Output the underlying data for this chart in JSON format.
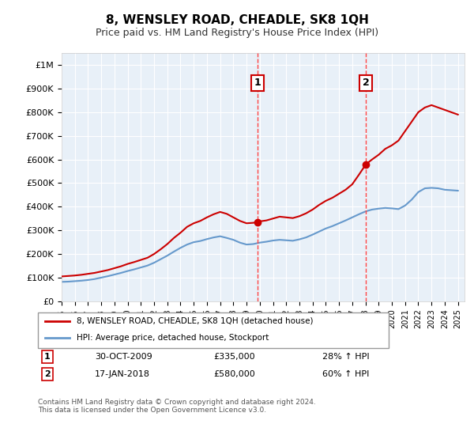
{
  "title": "8, WENSLEY ROAD, CHEADLE, SK8 1QH",
  "subtitle": "Price paid vs. HM Land Registry's House Price Index (HPI)",
  "legend_line1": "8, WENSLEY ROAD, CHEADLE, SK8 1QH (detached house)",
  "legend_line2": "HPI: Average price, detached house, Stockport",
  "footer": "Contains HM Land Registry data © Crown copyright and database right 2024.\nThis data is licensed under the Open Government Licence v3.0.",
  "annotation1_label": "1",
  "annotation1_date": "30-OCT-2009",
  "annotation1_price": "£335,000",
  "annotation1_hpi": "28% ↑ HPI",
  "annotation2_label": "2",
  "annotation2_date": "17-JAN-2018",
  "annotation2_price": "£580,000",
  "annotation2_hpi": "60% ↑ HPI",
  "sale1_x": 2009.83,
  "sale1_y": 335000,
  "sale2_x": 2018.04,
  "sale2_y": 580000,
  "vline1_x": 2009.83,
  "vline2_x": 2018.04,
  "property_color": "#cc0000",
  "hpi_color": "#6699cc",
  "vline_color": "#ff4444",
  "background_color": "#ffffff",
  "plot_bg_color": "#e8f0f8",
  "ylim": [
    0,
    1050000
  ],
  "xlim_start": 1995.0,
  "xlim_end": 2025.5,
  "yticks": [
    0,
    100000,
    200000,
    300000,
    400000,
    500000,
    600000,
    700000,
    800000,
    900000,
    1000000
  ],
  "ytick_labels": [
    "£0",
    "£100K",
    "£200K",
    "£300K",
    "£400K",
    "£500K",
    "£600K",
    "£700K",
    "£800K",
    "£900K",
    "£1M"
  ],
  "xticks": [
    1995,
    1996,
    1997,
    1998,
    1999,
    2000,
    2001,
    2002,
    2003,
    2004,
    2005,
    2006,
    2007,
    2008,
    2009,
    2010,
    2011,
    2012,
    2013,
    2014,
    2015,
    2016,
    2017,
    2018,
    2019,
    2020,
    2021,
    2022,
    2023,
    2024,
    2025
  ],
  "property_x": [
    1995.0,
    1995.5,
    1996.0,
    1996.5,
    1997.0,
    1997.5,
    1998.0,
    1998.5,
    1999.0,
    1999.5,
    2000.0,
    2000.5,
    2001.0,
    2001.5,
    2002.0,
    2002.5,
    2003.0,
    2003.5,
    2004.0,
    2004.5,
    2005.0,
    2005.5,
    2006.0,
    2006.5,
    2007.0,
    2007.5,
    2008.0,
    2008.5,
    2009.0,
    2009.5,
    2009.83,
    2010.0,
    2010.5,
    2011.0,
    2011.5,
    2012.0,
    2012.5,
    2013.0,
    2013.5,
    2014.0,
    2014.5,
    2015.0,
    2015.5,
    2016.0,
    2016.5,
    2017.0,
    2017.5,
    2018.04,
    2018.5,
    2019.0,
    2019.5,
    2020.0,
    2020.5,
    2021.0,
    2021.5,
    2022.0,
    2022.5,
    2023.0,
    2023.5,
    2024.0,
    2024.5,
    2025.0
  ],
  "property_y": [
    105000,
    107000,
    109000,
    112000,
    116000,
    120000,
    126000,
    132000,
    140000,
    148000,
    158000,
    166000,
    175000,
    184000,
    200000,
    220000,
    242000,
    268000,
    290000,
    315000,
    330000,
    340000,
    355000,
    368000,
    378000,
    370000,
    355000,
    340000,
    330000,
    332000,
    335000,
    338000,
    342000,
    350000,
    358000,
    355000,
    352000,
    360000,
    372000,
    388000,
    408000,
    425000,
    438000,
    455000,
    472000,
    495000,
    535000,
    580000,
    600000,
    620000,
    645000,
    660000,
    680000,
    720000,
    760000,
    800000,
    820000,
    830000,
    820000,
    810000,
    800000,
    790000
  ],
  "hpi_x": [
    1995.0,
    1995.5,
    1996.0,
    1996.5,
    1997.0,
    1997.5,
    1998.0,
    1998.5,
    1999.0,
    1999.5,
    2000.0,
    2000.5,
    2001.0,
    2001.5,
    2002.0,
    2002.5,
    2003.0,
    2003.5,
    2004.0,
    2004.5,
    2005.0,
    2005.5,
    2006.0,
    2006.5,
    2007.0,
    2007.5,
    2008.0,
    2008.5,
    2009.0,
    2009.5,
    2010.0,
    2010.5,
    2011.0,
    2011.5,
    2012.0,
    2012.5,
    2013.0,
    2013.5,
    2014.0,
    2014.5,
    2015.0,
    2015.5,
    2016.0,
    2016.5,
    2017.0,
    2017.5,
    2018.0,
    2018.5,
    2019.0,
    2019.5,
    2020.0,
    2020.5,
    2021.0,
    2021.5,
    2022.0,
    2022.5,
    2023.0,
    2023.5,
    2024.0,
    2024.5,
    2025.0
  ],
  "hpi_y": [
    82000,
    83000,
    85000,
    87000,
    90000,
    94000,
    100000,
    106000,
    113000,
    120000,
    128000,
    135000,
    143000,
    151000,
    163000,
    178000,
    193000,
    210000,
    226000,
    240000,
    250000,
    255000,
    263000,
    270000,
    275000,
    268000,
    260000,
    248000,
    240000,
    242000,
    248000,
    252000,
    257000,
    260000,
    258000,
    256000,
    262000,
    270000,
    282000,
    295000,
    308000,
    318000,
    330000,
    342000,
    355000,
    368000,
    380000,
    388000,
    392000,
    395000,
    393000,
    390000,
    405000,
    430000,
    462000,
    478000,
    480000,
    478000,
    472000,
    470000,
    468000
  ]
}
